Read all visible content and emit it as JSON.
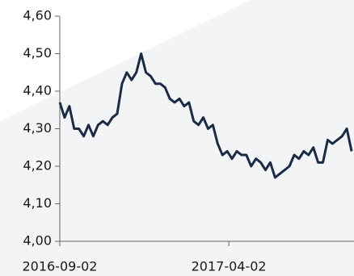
{
  "chart_data": {
    "type": "line",
    "x": [
      "2016-09-02",
      "2016-09-08",
      "2016-09-14",
      "2016-09-20",
      "2016-09-26",
      "2016-10-02",
      "2016-10-08",
      "2016-10-14",
      "2016-10-20",
      "2016-10-26",
      "2016-11-01",
      "2016-11-07",
      "2016-11-13",
      "2016-11-19",
      "2016-11-25",
      "2016-12-01",
      "2016-12-07",
      "2016-12-13",
      "2016-12-19",
      "2016-12-25",
      "2016-12-31",
      "2017-01-06",
      "2017-01-12",
      "2017-01-18",
      "2017-01-24",
      "2017-01-30",
      "2017-02-05",
      "2017-02-11",
      "2017-02-17",
      "2017-02-23",
      "2017-03-01",
      "2017-03-07",
      "2017-03-13",
      "2017-03-19",
      "2017-03-25",
      "2017-03-31",
      "2017-04-06",
      "2017-04-12",
      "2017-04-18",
      "2017-04-24",
      "2017-04-30",
      "2017-05-06",
      "2017-05-12",
      "2017-05-18",
      "2017-05-24",
      "2017-05-30",
      "2017-06-05",
      "2017-06-11",
      "2017-06-17",
      "2017-06-23",
      "2017-06-29",
      "2017-07-05",
      "2017-07-11",
      "2017-07-17",
      "2017-07-23",
      "2017-07-29",
      "2017-08-04",
      "2017-08-10",
      "2017-08-16",
      "2017-08-22",
      "2017-08-28",
      "2017-09-03"
    ],
    "values": [
      4.37,
      4.33,
      4.36,
      4.3,
      4.3,
      4.28,
      4.31,
      4.28,
      4.31,
      4.32,
      4.31,
      4.33,
      4.34,
      4.42,
      4.45,
      4.43,
      4.45,
      4.5,
      4.45,
      4.44,
      4.42,
      4.42,
      4.41,
      4.38,
      4.37,
      4.38,
      4.36,
      4.37,
      4.32,
      4.31,
      4.33,
      4.3,
      4.31,
      4.26,
      4.23,
      4.24,
      4.22,
      4.24,
      4.23,
      4.23,
      4.2,
      4.22,
      4.21,
      4.19,
      4.21,
      4.17,
      4.18,
      4.19,
      4.2,
      4.23,
      4.22,
      4.24,
      4.23,
      4.25,
      4.21,
      4.21,
      4.27,
      4.26,
      4.27,
      4.28,
      4.3,
      4.24
    ],
    "color": "#1c2b45",
    "xlim": [
      "2016-09-02",
      "2017-09-06"
    ],
    "xticks": [
      "2016-09-02",
      "2017-04-02"
    ],
    "ylim": [
      4.0,
      4.6
    ],
    "yticks": [
      {
        "value": 4.0,
        "label": "4,00"
      },
      {
        "value": 4.1,
        "label": "4,10"
      },
      {
        "value": 4.2,
        "label": "4,20"
      },
      {
        "value": 4.3,
        "label": "4,30"
      },
      {
        "value": 4.4,
        "label": "4,40"
      },
      {
        "value": 4.5,
        "label": "4,50"
      },
      {
        "value": 4.6,
        "label": "4,60"
      }
    ]
  }
}
